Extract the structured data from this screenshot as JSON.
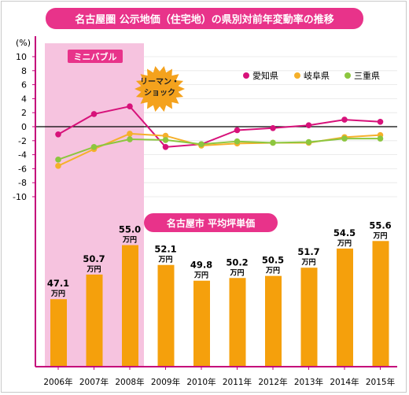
{
  "title": "名古屋圏 公示地価（住宅地）の県別対前年変動率の推移",
  "colors": {
    "title_bg": "#e8338a",
    "mini_bubble_bg": "#f6c3df",
    "mini_bubble_label_bg": "#e8338a",
    "lehman_burst": "#f4a21d",
    "aichi": "#d7127a",
    "gifu": "#f5b02a",
    "mie": "#8cc63f",
    "bar": "#f5a00c",
    "axis": "#c4007a",
    "zero_line": "#000000",
    "grid": "#e6e6e6"
  },
  "annotations": {
    "mini_bubble": "ミニバブル",
    "lehman_shock_line1": "リーマン・",
    "lehman_shock_line2": "ショック",
    "price_section_title": "名古屋市 平均坪単価",
    "unit_label": "万円"
  },
  "chart_data": [
    {
      "type": "line",
      "title": "名古屋圏 公示地価（住宅地）の県別対前年変動率の推移",
      "ylabel": "(%)",
      "ylim": [
        -10,
        10
      ],
      "yticks": [
        10,
        8,
        6,
        4,
        2,
        0,
        -2,
        -4,
        -6,
        -8,
        -10
      ],
      "x": [
        "2006年",
        "2007年",
        "2008年",
        "2009年",
        "2010年",
        "2011年",
        "2012年",
        "2013年",
        "2014年",
        "2015年"
      ],
      "legend_position": "top-right",
      "series": [
        {
          "name": "愛知県",
          "color": "#d7127a",
          "values": [
            -1.1,
            1.8,
            2.9,
            -2.9,
            -2.5,
            -0.5,
            -0.2,
            0.2,
            1.0,
            0.7
          ]
        },
        {
          "name": "岐阜県",
          "color": "#f5b02a",
          "values": [
            -5.6,
            -3.2,
            -1.0,
            -1.3,
            -2.7,
            -2.4,
            -2.3,
            -2.3,
            -1.5,
            -1.2
          ]
        },
        {
          "name": "三重県",
          "color": "#8cc63f",
          "values": [
            -4.7,
            -2.9,
            -1.8,
            -1.9,
            -2.5,
            -2.1,
            -2.3,
            -2.2,
            -1.7,
            -1.7
          ]
        }
      ]
    },
    {
      "type": "bar",
      "title": "名古屋市 平均坪単価",
      "categories": [
        "2006年",
        "2007年",
        "2008年",
        "2009年",
        "2010年",
        "2011年",
        "2012年",
        "2013年",
        "2014年",
        "2015年"
      ],
      "values": [
        47.1,
        50.7,
        55.0,
        52.1,
        49.8,
        50.2,
        50.5,
        51.7,
        54.5,
        55.6
      ],
      "unit": "万円"
    }
  ]
}
